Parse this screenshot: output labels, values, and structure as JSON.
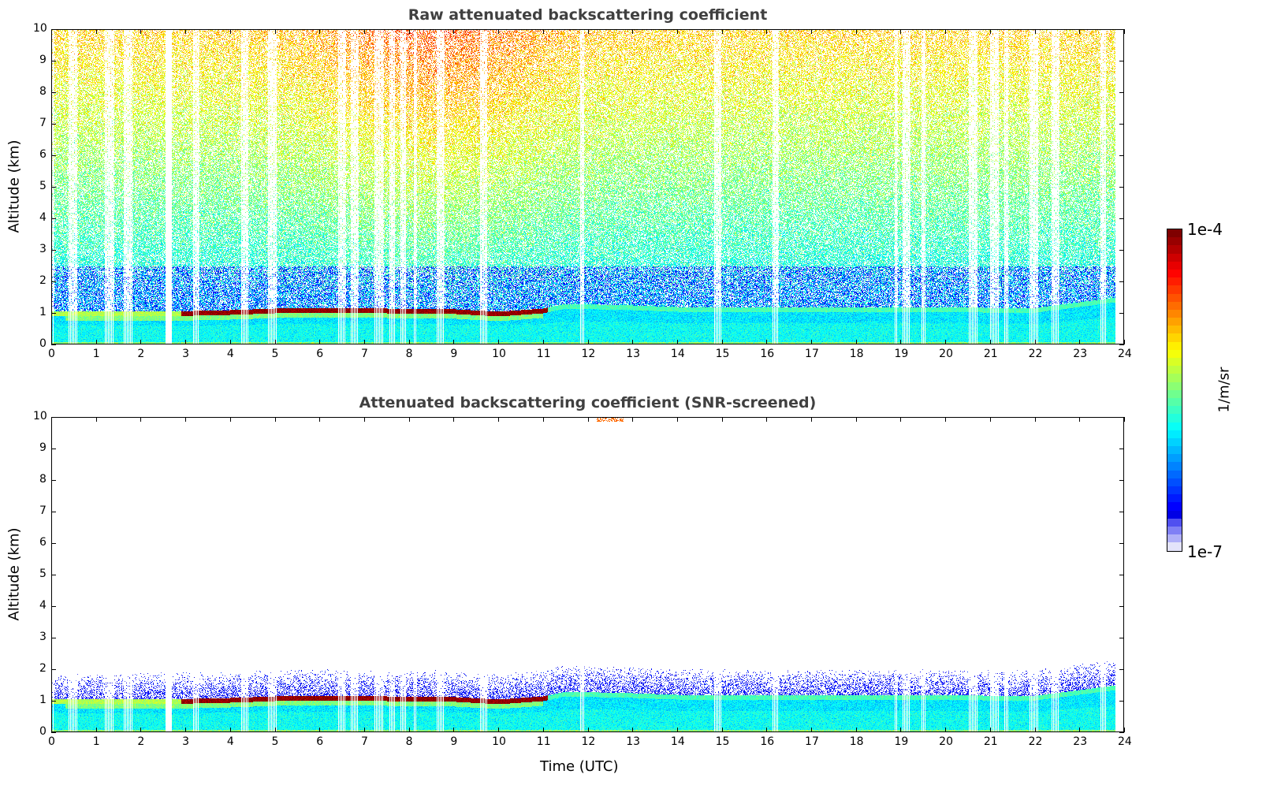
{
  "chart_data": [
    {
      "type": "heatmap",
      "title": "Raw attenuated backscattering coefficient",
      "xlabel": "",
      "ylabel": "Altitude (km)",
      "xlim": [
        0,
        24
      ],
      "ylim": [
        0,
        10
      ],
      "xticks": [
        0,
        1,
        2,
        3,
        4,
        5,
        6,
        7,
        8,
        9,
        10,
        11,
        12,
        13,
        14,
        15,
        16,
        17,
        18,
        19,
        20,
        21,
        22,
        23,
        24
      ],
      "yticks": [
        0,
        1,
        2,
        3,
        4,
        5,
        6,
        7,
        8,
        9,
        10
      ],
      "data_end_hour": 23.8,
      "boundary_layer_top_km": {
        "x": [
          0,
          3,
          4,
          5,
          6,
          9,
          10,
          11,
          11.5,
          13,
          14,
          15,
          22,
          23,
          23.8
        ],
        "y": [
          1.0,
          1.02,
          1.05,
          1.1,
          1.12,
          1.08,
          1.0,
          1.1,
          1.25,
          1.2,
          1.15,
          1.15,
          1.12,
          1.3,
          1.45
        ]
      }
    },
    {
      "type": "heatmap",
      "title": "Attenuated backscattering coefficient (SNR-screened)",
      "xlabel": "Time (UTC)",
      "ylabel": "Altitude (km)",
      "xlim": [
        0,
        24
      ],
      "ylim": [
        0,
        10
      ],
      "xticks": [
        0,
        1,
        2,
        3,
        4,
        5,
        6,
        7,
        8,
        9,
        10,
        11,
        12,
        13,
        14,
        15,
        16,
        17,
        18,
        19,
        20,
        21,
        22,
        23,
        24
      ],
      "yticks": [
        0,
        1,
        2,
        3,
        4,
        5,
        6,
        7,
        8,
        9,
        10
      ]
    }
  ],
  "colorbar": {
    "label": "1/m/sr",
    "min_label": "1e-7",
    "max_label": "1e-4",
    "min": 1e-07,
    "max": 0.0001,
    "scale": "log",
    "colormap": "jet"
  }
}
